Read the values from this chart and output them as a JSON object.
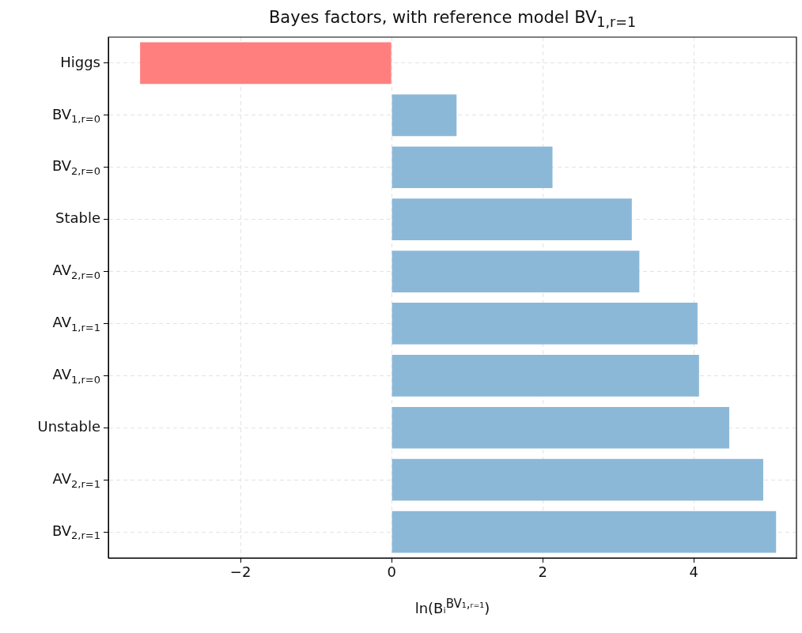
{
  "chart_data": {
    "type": "bar",
    "orientation": "horizontal",
    "title": "Bayes factors, with reference model BV$_{1,r=1}$",
    "xlabel": "ln(Bᵢ$^{BV₁,ᵣ₌₁}$)",
    "categories": [
      "Higgs",
      "BV$_{1,r=0}$",
      "BV$_{2,r=0}$",
      "Stable",
      "AV$_{2,r=0}$",
      "AV$_{1,r=1}$",
      "AV$_{1,r=0}$",
      "Unstable",
      "AV$_{2,r=1}$",
      "BV$_{2,r=1}$"
    ],
    "values": [
      -3.33,
      0.86,
      2.13,
      3.18,
      3.28,
      4.05,
      4.07,
      4.47,
      4.92,
      5.09
    ],
    "colors": [
      "#ff7f7f",
      "#8cb8d8",
      "#8cb8d8",
      "#8cb8d8",
      "#8cb8d8",
      "#8cb8d8",
      "#8cb8d8",
      "#8cb8d8",
      "#8cb8d8",
      "#8cb8d8"
    ],
    "xlim": [
      -3.75,
      5.36
    ],
    "xticks": [
      -2,
      0,
      2,
      4
    ],
    "grid": true
  }
}
